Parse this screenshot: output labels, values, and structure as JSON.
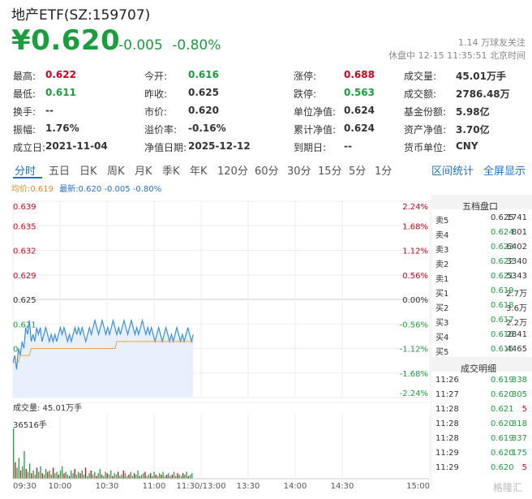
{
  "header": {
    "title": "地产ETF(SZ:159707)",
    "price": "¥0.620",
    "change": "-0.005",
    "change_pct": "-0.80%",
    "follow": "1.14 万球友关注",
    "status": "休盘中 12-15 11:35:51 北京时间"
  },
  "quote_rows": [
    [
      {
        "label": "最高:",
        "value": "0.622",
        "cls": "up"
      },
      {
        "label": "今开:",
        "value": "0.616",
        "cls": "dn"
      },
      {
        "label": "涨停:",
        "value": "0.688",
        "cls": "up"
      },
      {
        "label": "成交量:",
        "value": "45.01万手",
        "cls": ""
      }
    ],
    [
      {
        "label": "最低:",
        "value": "0.611",
        "cls": "dn"
      },
      {
        "label": "昨收:",
        "value": "0.625",
        "cls": ""
      },
      {
        "label": "跌停:",
        "value": "0.563",
        "cls": "dn"
      },
      {
        "label": "成交额:",
        "value": "2786.48万",
        "cls": ""
      }
    ],
    [
      {
        "label": "换手:",
        "value": "--",
        "cls": ""
      },
      {
        "label": "市价:",
        "value": "0.620",
        "cls": ""
      },
      {
        "label": "单位净值:",
        "value": "0.624",
        "cls": ""
      },
      {
        "label": "基金份额:",
        "value": "5.98亿",
        "cls": ""
      }
    ],
    [
      {
        "label": "振幅:",
        "value": "1.76%",
        "cls": ""
      },
      {
        "label": "溢价率:",
        "value": "-0.16%",
        "cls": ""
      },
      {
        "label": "累计净值:",
        "value": "0.624",
        "cls": ""
      },
      {
        "label": "资产净值:",
        "value": "3.70亿",
        "cls": ""
      }
    ],
    [
      {
        "label": "成立日:",
        "value": "2021-11-04",
        "cls": ""
      },
      {
        "label": "净值日期:",
        "value": "2025-12-12",
        "cls": ""
      },
      {
        "label": "到期日:",
        "value": "--",
        "cls": ""
      },
      {
        "label": "货币单位:",
        "value": "CNY",
        "cls": ""
      }
    ]
  ],
  "tabs": [
    "分时",
    "五日",
    "日K",
    "周K",
    "月K",
    "季K",
    "年K",
    "120分",
    "60分",
    "30分",
    "15分",
    "5分",
    "1分"
  ],
  "tab_right": [
    "区间统计",
    "全屏显示"
  ],
  "legend": {
    "avg": "均价:0.619",
    "latest": "最新:0.620 -0.005 -0.80%"
  },
  "price_axis": [
    "0.639",
    "0.635",
    "0.632",
    "0.629",
    "0.625",
    "0.621",
    "0.618",
    "0.615",
    "0.611"
  ],
  "pct_axis": [
    "2.24%",
    "1.68%",
    "1.12%",
    "0.56%",
    "0.00%",
    "-0.56%",
    "-1.12%",
    "-1.68%",
    "-2.24%"
  ],
  "time_axis": [
    "09:30",
    "10:00",
    "10:30",
    "11:00",
    "11:30/13:00",
    "13:30",
    "14:00",
    "14:30",
    "15:00"
  ],
  "volume": {
    "title": "成交量: 45.01万手",
    "max": "36516手"
  },
  "orderbook": {
    "title": "五档盘口",
    "asks": [
      {
        "label": "卖5",
        "price": "0.625",
        "qty": "1741"
      },
      {
        "label": "卖4",
        "price": "0.624",
        "qty": "801"
      },
      {
        "label": "卖3",
        "price": "0.623",
        "qty": "6402"
      },
      {
        "label": "卖2",
        "price": "0.622",
        "qty": "3340"
      },
      {
        "label": "卖1",
        "price": "0.621",
        "qty": "5343"
      }
    ],
    "bids": [
      {
        "label": "买1",
        "price": "0.619",
        "qty": "2.7万"
      },
      {
        "label": "买2",
        "price": "0.618",
        "qty": "3.6万"
      },
      {
        "label": "买3",
        "price": "0.617",
        "qty": "2.2万"
      },
      {
        "label": "买4",
        "price": "0.616",
        "qty": "2841"
      },
      {
        "label": "买5",
        "price": "0.615",
        "qty": "4465"
      }
    ]
  },
  "trades": {
    "title": "成交明细",
    "rows": [
      {
        "time": "11:26",
        "price": "0.619",
        "qty": "338"
      },
      {
        "time": "11:27",
        "price": "0.620",
        "qty": "305"
      },
      {
        "time": "11:28",
        "price": "0.621",
        "qty": "5"
      },
      {
        "time": "11:28",
        "price": "0.620",
        "qty": "318"
      },
      {
        "time": "11:28",
        "price": "0.619",
        "qty": "337"
      },
      {
        "time": "11:29",
        "price": "0.620",
        "qty": "175"
      },
      {
        "time": "11:29",
        "price": "0.620",
        "qty": "5"
      }
    ]
  },
  "watermark": "格隆汇",
  "chart_data": {
    "type": "line",
    "prev_close": 0.625,
    "ylim": [
      0.611,
      0.639
    ],
    "price_series": [
      0.616,
      0.617,
      0.615,
      0.618,
      0.617,
      0.619,
      0.618,
      0.621,
      0.62,
      0.622,
      0.619,
      0.62,
      0.619,
      0.621,
      0.62,
      0.621,
      0.619,
      0.62,
      0.621,
      0.62,
      0.619,
      0.62,
      0.619,
      0.62,
      0.619,
      0.62,
      0.621,
      0.62,
      0.621,
      0.62,
      0.619,
      0.62,
      0.619,
      0.62,
      0.621,
      0.62,
      0.621,
      0.62,
      0.621,
      0.62,
      0.619,
      0.62,
      0.621,
      0.62,
      0.621,
      0.622,
      0.621,
      0.62,
      0.621,
      0.622,
      0.621,
      0.62,
      0.621,
      0.62,
      0.621,
      0.622,
      0.621,
      0.62,
      0.621,
      0.62,
      0.621,
      0.622,
      0.621,
      0.62,
      0.621,
      0.622,
      0.621,
      0.62,
      0.621,
      0.62,
      0.621,
      0.622,
      0.621,
      0.62,
      0.621,
      0.62,
      0.621,
      0.62,
      0.619,
      0.62,
      0.621,
      0.62,
      0.619,
      0.62,
      0.621,
      0.62,
      0.619,
      0.62,
      0.619,
      0.62,
      0.621,
      0.62,
      0.619,
      0.62,
      0.619,
      0.62,
      0.621,
      0.62,
      0.619,
      0.62
    ],
    "avg_series": [
      0.616,
      0.616,
      0.616,
      0.616,
      0.617,
      0.617,
      0.617,
      0.617,
      0.617,
      0.617,
      0.618,
      0.618,
      0.618,
      0.618,
      0.618,
      0.618,
      0.618,
      0.618,
      0.618,
      0.618,
      0.618,
      0.618,
      0.618,
      0.618,
      0.618,
      0.618,
      0.618,
      0.618,
      0.618,
      0.618,
      0.618,
      0.618,
      0.618,
      0.618,
      0.618,
      0.618,
      0.618,
      0.618,
      0.618,
      0.618,
      0.618,
      0.618,
      0.618,
      0.618,
      0.618,
      0.618,
      0.618,
      0.618,
      0.618,
      0.618,
      0.618,
      0.618,
      0.618,
      0.618,
      0.618,
      0.618,
      0.618,
      0.619,
      0.619,
      0.619,
      0.619,
      0.619,
      0.619,
      0.619,
      0.619,
      0.619,
      0.619,
      0.619,
      0.619,
      0.619,
      0.619,
      0.619,
      0.619,
      0.619,
      0.619,
      0.619,
      0.619,
      0.619,
      0.619,
      0.619,
      0.619,
      0.619,
      0.619,
      0.619,
      0.619,
      0.619,
      0.619,
      0.619,
      0.619,
      0.619,
      0.619,
      0.619,
      0.619,
      0.619,
      0.619,
      0.619,
      0.619,
      0.619,
      0.619,
      0.619
    ],
    "volume_series": [
      36516,
      12000,
      8000,
      15000,
      6000,
      9000,
      20000,
      7000,
      5000,
      11000,
      4000,
      6000,
      3000,
      8000,
      5000,
      9000,
      4000,
      3000,
      7000,
      5000,
      6000,
      3000,
      8000,
      4000,
      5000,
      3000,
      6000,
      9000,
      4000,
      5000,
      3000,
      2000,
      6000,
      4000,
      7000,
      3000,
      5000,
      4000,
      6000,
      3000,
      8000,
      2000,
      4000,
      6000,
      3000,
      5000,
      2000,
      4000,
      7000,
      3000,
      2000,
      5000,
      4000,
      3000,
      6000,
      2000,
      4000,
      3000,
      5000,
      2000,
      3000,
      6000,
      4000,
      2000,
      3000,
      5000,
      2000,
      4000,
      3000,
      6000,
      2000,
      3000,
      4000,
      5000,
      2000,
      3000,
      4000,
      2000,
      5000,
      3000,
      2000,
      4000,
      3000,
      5000,
      2000,
      3000,
      4000,
      2000,
      3000,
      5000,
      2000,
      4000,
      3000,
      2000,
      4000,
      3000,
      5000,
      2000,
      3000,
      4000
    ]
  }
}
